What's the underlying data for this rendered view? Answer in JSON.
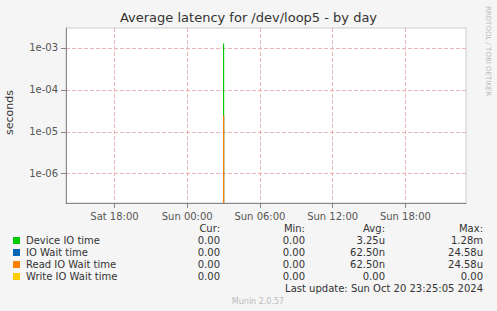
{
  "chart_data": {
    "type": "line",
    "title": "Average latency for /dev/loop5 - by day",
    "y_label": "seconds",
    "side_text": "RRDTOOL / TOBI OETIKER",
    "footer": "Last update: Sun Oct 20 23:25:05 2024",
    "generator": "Munin 2.0.57",
    "log": "y",
    "grid": true,
    "categories": [
      null,
      null,
      null,
      null,
      "Sat 18:00",
      null,
      null,
      null,
      null,
      null,
      "Sun 00:00",
      null,
      null,
      null,
      null,
      null,
      "Sun 06:00",
      null,
      null,
      null,
      null,
      null,
      "Sun 12:00",
      null,
      null,
      null,
      null,
      null,
      "Sun 18:00",
      null,
      null,
      null,
      null,
      null
    ],
    "ylim": [
      2e-07,
      0.003
    ],
    "yticks": [
      {
        "value": 1e-06,
        "label": "1e-06"
      },
      {
        "value": 1e-05,
        "label": "1e-05"
      },
      {
        "value": 0.0001,
        "label": "1e-04"
      },
      {
        "value": 0.001,
        "label": "1e-03"
      }
    ],
    "stat_columns": [
      "Cur:",
      "Min:",
      "Avg:",
      "Max:"
    ],
    "series": [
      {
        "name": "Device IO time",
        "color": "#00cc00",
        "values": [
          null,
          null,
          null,
          null,
          null,
          null,
          null,
          null,
          null,
          null,
          null,
          null,
          null,
          0.00128,
          null,
          null,
          null,
          null,
          null,
          null,
          null,
          null,
          null,
          null,
          null,
          null,
          null,
          null,
          null,
          null,
          null,
          null,
          null,
          null
        ],
        "stats": [
          "0.00",
          "0.00",
          "3.25u",
          "1.28m"
        ]
      },
      {
        "name": "IO Wait time",
        "color": "#0066b3",
        "values": [
          null,
          null,
          null,
          null,
          null,
          null,
          null,
          null,
          null,
          null,
          null,
          null,
          null,
          2.458e-05,
          null,
          null,
          null,
          null,
          null,
          null,
          null,
          null,
          null,
          null,
          null,
          null,
          null,
          null,
          null,
          null,
          null,
          null,
          null,
          null
        ],
        "stats": [
          "0.00",
          "0.00",
          "62.50n",
          "24.58u"
        ]
      },
      {
        "name": "Read IO Wait time",
        "color": "#ff8000",
        "values": [
          null,
          null,
          null,
          null,
          null,
          null,
          null,
          null,
          null,
          null,
          null,
          null,
          null,
          2.458e-05,
          null,
          null,
          null,
          null,
          null,
          null,
          null,
          null,
          null,
          null,
          null,
          null,
          null,
          null,
          null,
          null,
          null,
          null,
          null,
          null
        ],
        "stats": [
          "0.00",
          "0.00",
          "62.50n",
          "24.58u"
        ]
      },
      {
        "name": "Write IO Wait time",
        "color": "#ffcc00",
        "values": [
          null,
          null,
          null,
          null,
          null,
          null,
          null,
          null,
          null,
          null,
          null,
          null,
          null,
          null,
          null,
          null,
          null,
          null,
          null,
          null,
          null,
          null,
          null,
          null,
          null,
          null,
          null,
          null,
          null,
          null,
          null,
          null,
          null,
          null
        ],
        "stats": [
          "0.00",
          "0.00",
          "0.00",
          "0.00"
        ]
      }
    ]
  }
}
